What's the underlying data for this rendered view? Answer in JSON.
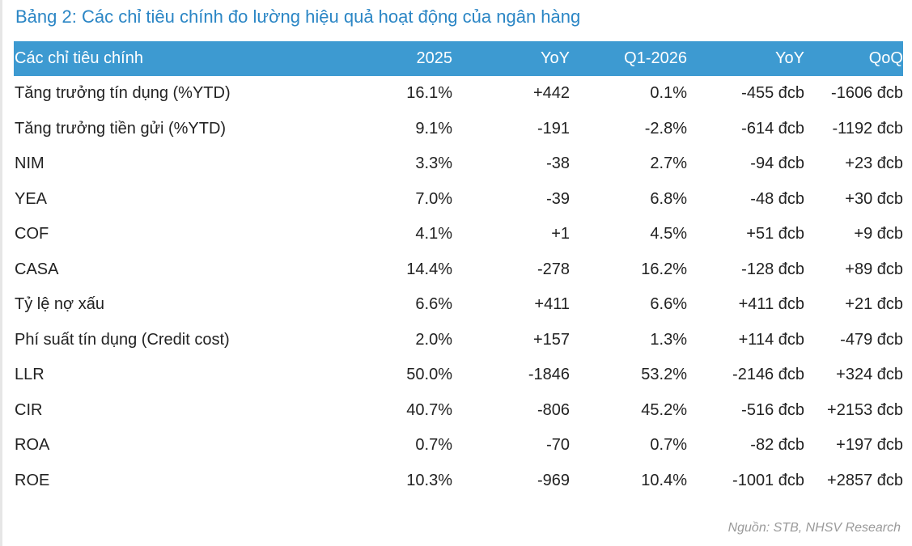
{
  "title": "Bảng 2: Các chỉ tiêu chính đo lường hiệu quả hoạt động của ngân hàng",
  "table": {
    "headers": [
      "Các chỉ tiêu chính",
      "2025",
      "YoY",
      "Q1-2026",
      "YoY",
      "QoQ"
    ],
    "rows": [
      [
        "Tăng trưởng tín dụng (%YTD)",
        "16.1%",
        "+442",
        "0.1%",
        "-455 đcb",
        "-1606 đcb"
      ],
      [
        "Tăng trưởng tiền gửi (%YTD)",
        "9.1%",
        "-191",
        "-2.8%",
        "-614 đcb",
        "-1192 đcb"
      ],
      [
        "NIM",
        "3.3%",
        "-38",
        "2.7%",
        "-94 đcb",
        "+23 đcb"
      ],
      [
        "YEA",
        "7.0%",
        "-39",
        "6.8%",
        "-48 đcb",
        "+30 đcb"
      ],
      [
        "COF",
        "4.1%",
        "+1",
        "4.5%",
        "+51 đcb",
        "+9 đcb"
      ],
      [
        "CASA",
        "14.4%",
        "-278",
        "16.2%",
        "-128 đcb",
        "+89 đcb"
      ],
      [
        "Tỷ lệ nợ xấu",
        "6.6%",
        "+411",
        "6.6%",
        "+411 đcb",
        "+21 đcb"
      ],
      [
        "Phí suất tín dụng (Credit cost)",
        "2.0%",
        "+157",
        "1.3%",
        "+114 đcb",
        "-479 đcb"
      ],
      [
        "LLR",
        "50.0%",
        "-1846",
        "53.2%",
        "-2146 đcb",
        "+324 đcb"
      ],
      [
        "CIR",
        "40.7%",
        "-806",
        "45.2%",
        "-516 đcb",
        "+2153 đcb"
      ],
      [
        "ROA",
        "0.7%",
        "-70",
        "0.7%",
        "-82 đcb",
        "+197 đcb"
      ],
      [
        "ROE",
        "10.3%",
        "-969",
        "10.4%",
        "-1001 đcb",
        "+2857 đcb"
      ]
    ]
  },
  "source": "Nguồn: STB, NHSV Research",
  "colors": {
    "title": "#2b86c5",
    "header_background": "#3d9ad1",
    "header_text": "#ffffff",
    "body_text": "#222222",
    "source_text": "#9a9a9a"
  }
}
